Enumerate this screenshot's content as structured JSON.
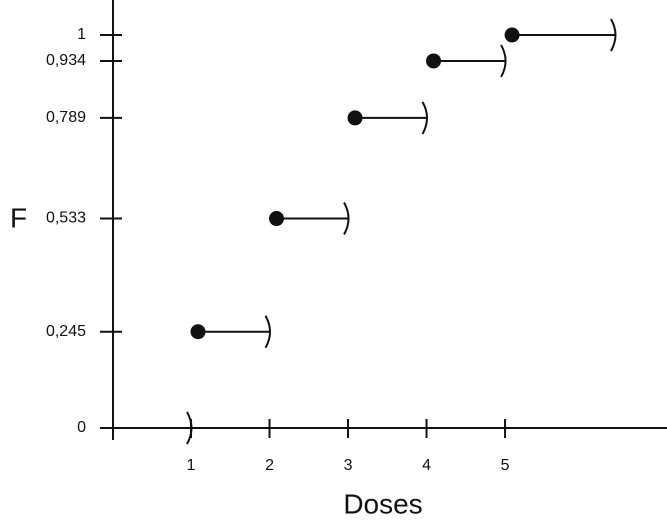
{
  "chart_data": {
    "type": "step",
    "y_label": "F",
    "x_label": "Doses",
    "x": [
      0,
      1,
      2,
      3,
      4,
      5
    ],
    "x_end": [
      1,
      2,
      3,
      4,
      5,
      6.4
    ],
    "values": [
      0,
      0.245,
      0.533,
      0.789,
      0.934,
      1
    ],
    "color": "#111111",
    "xlim": [
      0,
      7.05
    ],
    "ylim": [
      0,
      1
    ],
    "xticks": [
      1,
      2,
      3,
      4,
      5
    ],
    "yticks": [
      0,
      {
        "value": 0.245,
        "label": "0,245"
      },
      {
        "value": 0.533,
        "label": "0,533"
      },
      {
        "value": 0.789,
        "label": "0,789"
      },
      {
        "value": 0.934,
        "label": "0,934"
      },
      1
    ]
  }
}
